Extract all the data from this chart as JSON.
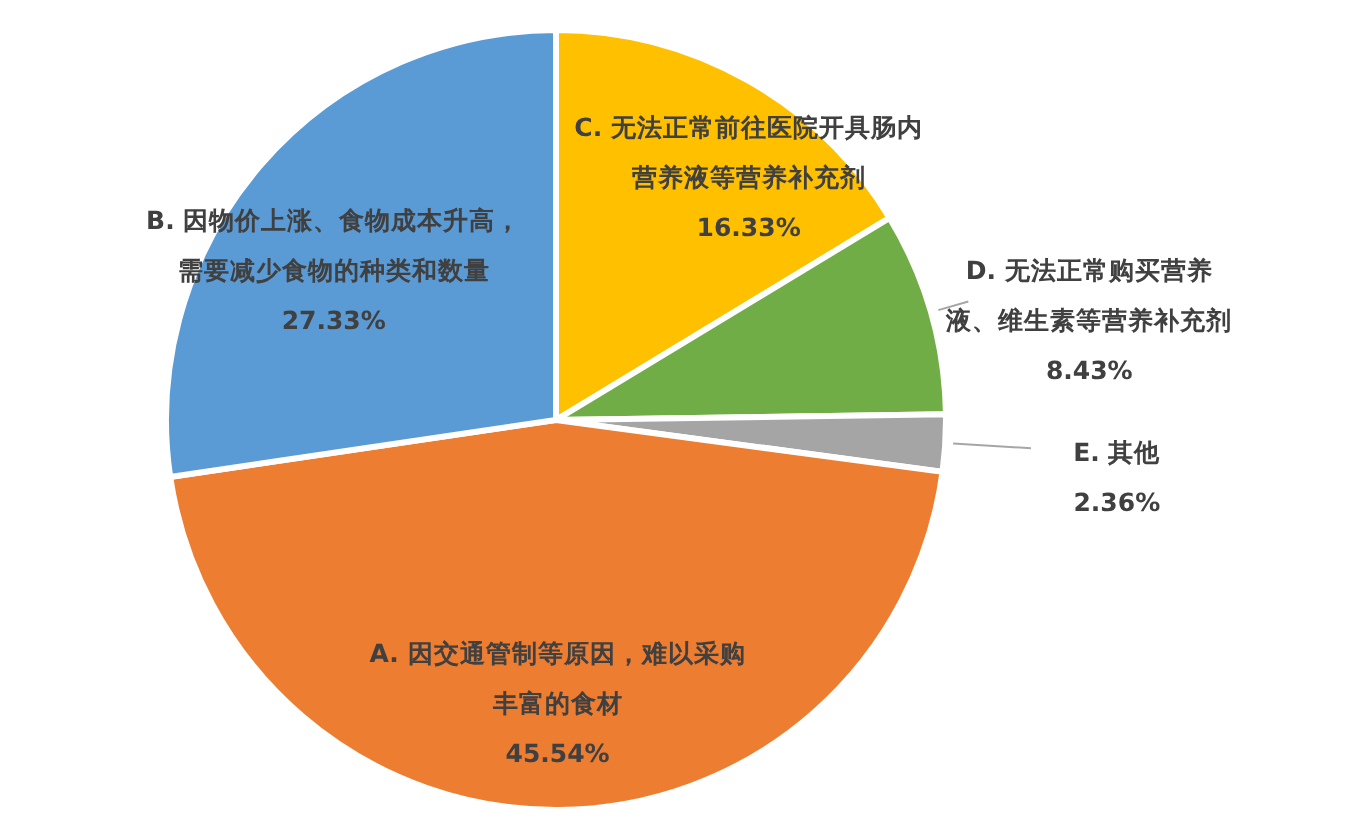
{
  "chart_data": {
    "type": "pie",
    "categories": [
      "C. 无法正常前往医院开具肠内营养液等营养补充剂",
      "D. 无法正常购买营养液、维生素等营养补充剂",
      "E. 其他",
      "A. 因交通管制等原因，难以采购丰富的食材",
      "B. 因物价上涨、食物成本升高，需要减少食物的种类和数量"
    ],
    "values": [
      16.33,
      8.43,
      2.36,
      45.54,
      27.33
    ],
    "value_labels": [
      "16.33%",
      "8.43%",
      "2.36%",
      "45.54%",
      "27.33%"
    ],
    "colors": [
      "#ffc000",
      "#70ad47",
      "#a5a5a5",
      "#ed7d31",
      "#5b9bd5"
    ]
  }
}
